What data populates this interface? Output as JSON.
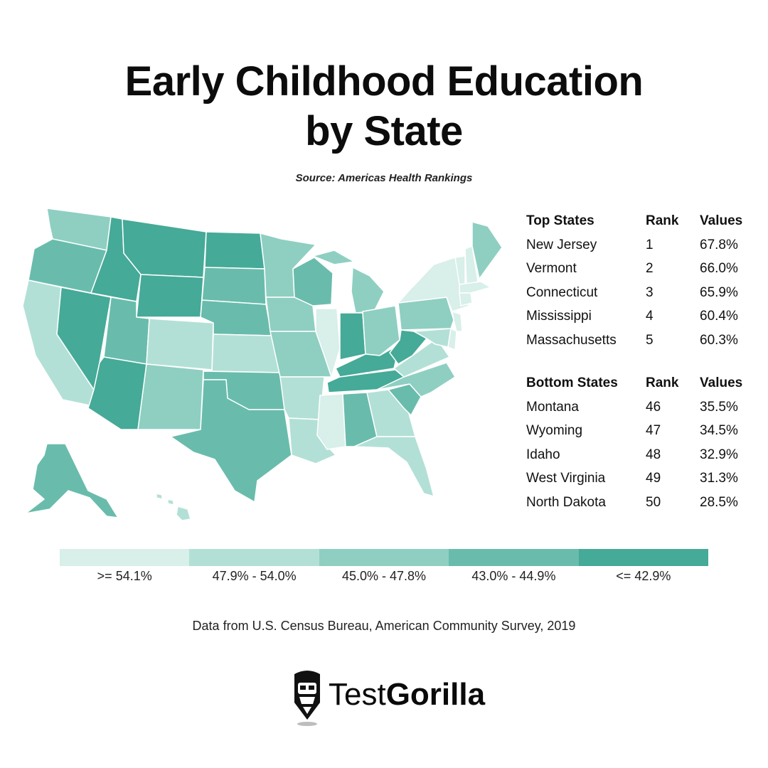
{
  "header": {
    "title_line1": "Early Childhood Education",
    "title_line2": "by State",
    "source": "Source: Americas Health Rankings"
  },
  "map_data": {
    "regions": [
      {
        "name": "Washington",
        "bin": 2
      },
      {
        "name": "Oregon",
        "bin": 3
      },
      {
        "name": "California",
        "bin": 1
      },
      {
        "name": "Nevada",
        "bin": 4
      },
      {
        "name": "Idaho",
        "bin": 4
      },
      {
        "name": "Montana",
        "bin": 4
      },
      {
        "name": "Wyoming",
        "bin": 4
      },
      {
        "name": "Utah",
        "bin": 3
      },
      {
        "name": "Arizona",
        "bin": 4
      },
      {
        "name": "Colorado",
        "bin": 1
      },
      {
        "name": "New Mexico",
        "bin": 2
      },
      {
        "name": "North Dakota",
        "bin": 4
      },
      {
        "name": "South Dakota",
        "bin": 3
      },
      {
        "name": "Nebraska",
        "bin": 3
      },
      {
        "name": "Kansas",
        "bin": 1
      },
      {
        "name": "Oklahoma",
        "bin": 3
      },
      {
        "name": "Texas",
        "bin": 3
      },
      {
        "name": "Minnesota",
        "bin": 2
      },
      {
        "name": "Iowa",
        "bin": 2
      },
      {
        "name": "Missouri",
        "bin": 2
      },
      {
        "name": "Arkansas",
        "bin": 1
      },
      {
        "name": "Louisiana",
        "bin": 1
      },
      {
        "name": "Wisconsin",
        "bin": 3
      },
      {
        "name": "Illinois",
        "bin": 0
      },
      {
        "name": "Michigan",
        "bin": 2
      },
      {
        "name": "Indiana",
        "bin": 4
      },
      {
        "name": "Ohio",
        "bin": 2
      },
      {
        "name": "Kentucky",
        "bin": 4
      },
      {
        "name": "Tennessee",
        "bin": 4
      },
      {
        "name": "Mississippi",
        "bin": 0
      },
      {
        "name": "Alabama",
        "bin": 3
      },
      {
        "name": "Georgia",
        "bin": 1
      },
      {
        "name": "Florida",
        "bin": 1
      },
      {
        "name": "South Carolina",
        "bin": 3
      },
      {
        "name": "North Carolina",
        "bin": 2
      },
      {
        "name": "Virginia",
        "bin": 1
      },
      {
        "name": "West Virginia",
        "bin": 4
      },
      {
        "name": "Pennsylvania",
        "bin": 2
      },
      {
        "name": "New York",
        "bin": 0
      },
      {
        "name": "Vermont",
        "bin": 0
      },
      {
        "name": "New Hampshire",
        "bin": 0
      },
      {
        "name": "Maine",
        "bin": 2
      },
      {
        "name": "Massachusetts",
        "bin": 0
      },
      {
        "name": "Connecticut",
        "bin": 0
      },
      {
        "name": "New Jersey",
        "bin": 0
      },
      {
        "name": "Delaware",
        "bin": 0
      },
      {
        "name": "Maryland",
        "bin": 1
      },
      {
        "name": "Alaska",
        "bin": 3
      },
      {
        "name": "Hawaii",
        "bin": 1
      }
    ]
  },
  "top_table": {
    "headers": [
      "Top States",
      "Rank",
      "Values"
    ],
    "rows": [
      {
        "state": "New Jersey",
        "rank": "1",
        "value": "67.8%"
      },
      {
        "state": "Vermont",
        "rank": "2",
        "value": "66.0%"
      },
      {
        "state": "Connecticut",
        "rank": "3",
        "value": "65.9%"
      },
      {
        "state": "Mississippi",
        "rank": "4",
        "value": "60.4%"
      },
      {
        "state": "Massachusetts",
        "rank": "5",
        "value": "60.3%"
      }
    ]
  },
  "bottom_table": {
    "headers": [
      "Bottom States",
      "Rank",
      "Values"
    ],
    "rows": [
      {
        "state": "Montana",
        "rank": "46",
        "value": "35.5%"
      },
      {
        "state": "Wyoming",
        "rank": "47",
        "value": "34.5%"
      },
      {
        "state": "Idaho",
        "rank": "48",
        "value": "32.9%"
      },
      {
        "state": "West Virginia",
        "rank": "49",
        "value": "31.3%"
      },
      {
        "state": "North Dakota",
        "rank": "50",
        "value": "28.5%"
      }
    ]
  },
  "legend": {
    "bins": [
      {
        "label": ">= 54.1%",
        "color": "#d8efea"
      },
      {
        "label": "47.9% - 54.0%",
        "color": "#b3e0d6"
      },
      {
        "label": "45.0% - 47.8%",
        "color": "#8ecfc2"
      },
      {
        "label": "43.0% - 44.9%",
        "color": "#69bcac"
      },
      {
        "label": "<= 42.9%",
        "color": "#45aa97"
      }
    ]
  },
  "footer": {
    "note": "Data from U.S. Census Bureau, American Community Survey, 2019",
    "brand_light": "Test",
    "brand_bold": "Gorilla"
  }
}
